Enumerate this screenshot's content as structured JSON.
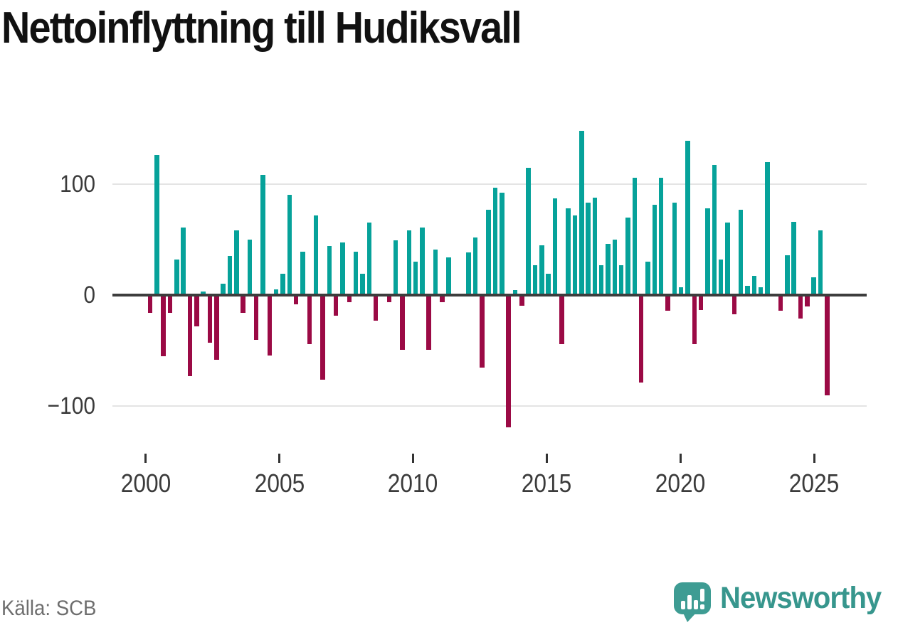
{
  "title": "Nettoinflyttning till Hudiksvall",
  "source": "Källa: SCB",
  "logo": {
    "brand": "Newsworthy",
    "icon": "newsworthy-speech-bubble-chart-icon"
  },
  "colors": {
    "positive_bar": "#06a29a",
    "negative_bar": "#9b0a45",
    "zero_axis": "#3d3d3d",
    "gridline": "#e4e4e4",
    "axis_text": "#3b3b3b",
    "title_text": "#111111",
    "source_text": "#6e6e6e",
    "brand_teal": "#3e9c93",
    "wordmark_teal": "#37968d"
  },
  "chart_data": {
    "type": "bar",
    "title": "Nettoinflyttning till Hudiksvall",
    "frequency": "quarterly",
    "start": "2000 Q1",
    "end": "2025 Q3",
    "xlabel": "",
    "ylabel": "",
    "ylim": [
      -130,
      160
    ],
    "grid": "horizontal at 100 and -100",
    "legend": "none",
    "y_tick_values": [
      100,
      0,
      -100
    ],
    "y_tick_labels": [
      "100",
      "0",
      "−100"
    ],
    "x_tick_labels": [
      "2000",
      "2005",
      "2010",
      "2015",
      "2020",
      "2025"
    ],
    "values": [
      -15,
      125,
      -54,
      -15,
      31,
      60,
      -72,
      -27,
      2,
      -42,
      -57,
      9,
      34,
      57,
      -15,
      49,
      -39,
      107,
      -53,
      4,
      18,
      89,
      -7,
      38,
      -43,
      71,
      -75,
      43,
      -17,
      46,
      -5,
      38,
      18,
      64,
      -22,
      0,
      -5,
      48,
      -48,
      57,
      29,
      60,
      -48,
      40,
      -5,
      33,
      0,
      0,
      37,
      51,
      -64,
      76,
      96,
      91,
      -118,
      3,
      -8,
      114,
      26,
      44,
      18,
      86,
      -43,
      77,
      71,
      147,
      82,
      87,
      26,
      45,
      49,
      26,
      69,
      105,
      -78,
      29,
      80,
      105,
      -13,
      82,
      6,
      138,
      -43,
      -12,
      77,
      116,
      31,
      64,
      -16,
      76,
      7,
      16,
      6,
      119,
      0,
      -13,
      35,
      65,
      -20,
      -9,
      15,
      57,
      -89
    ]
  }
}
